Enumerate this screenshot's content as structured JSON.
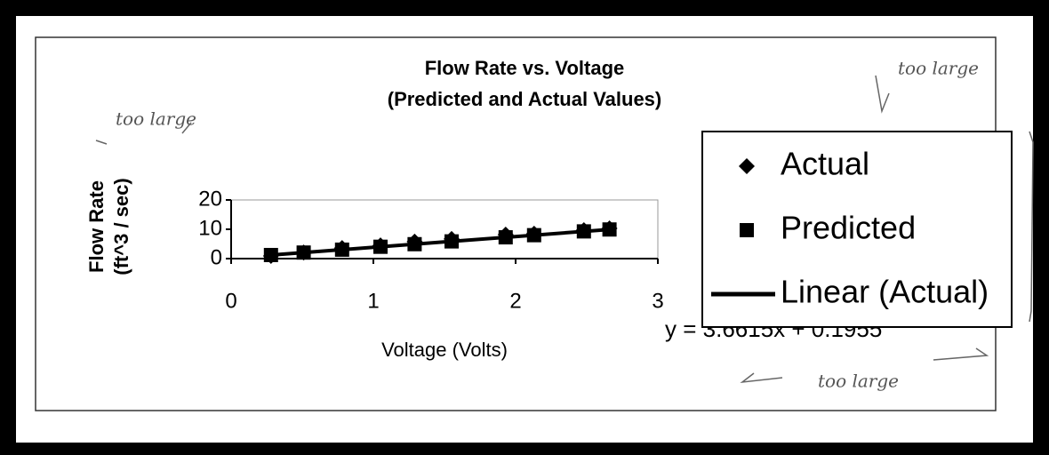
{
  "chart_data": {
    "type": "scatter",
    "title": "Flow Rate vs. Voltage",
    "subtitle": "(Predicted and Actual Values)",
    "x_label": "Voltage (Volts)",
    "y_label": [
      "Flow Rate",
      "(ft^3 / sec)"
    ],
    "x": [
      0.28,
      0.51,
      0.78,
      1.05,
      1.29,
      1.55,
      1.93,
      2.13,
      2.48,
      2.66
    ],
    "series": [
      {
        "name": "Actual",
        "color": "#000000",
        "marker": "diamond",
        "values": [
          0.9,
          2.1,
          3.6,
          4.5,
          5.8,
          6.7,
          8.2,
          8.5,
          9.7,
          10.3
        ]
      },
      {
        "name": "Predicted",
        "color": "#000000",
        "marker": "square",
        "values": [
          1.22,
          2.06,
          3.05,
          4.04,
          4.92,
          5.87,
          7.26,
          7.99,
          9.28,
          9.93
        ]
      }
    ],
    "trendline": {
      "name": "Linear (Actual)",
      "color": "#000000",
      "equation": "y = 3.6615x + 0.1955",
      "slope": 3.6615,
      "intercept": 0.1955
    },
    "xlim": [
      0,
      3
    ],
    "xticks": [
      0,
      1,
      2,
      3
    ],
    "ylim": [
      0,
      20
    ],
    "yticks": [
      0,
      10,
      20
    ],
    "legend": "right",
    "annotations": [
      "too large",
      "too large",
      "too large"
    ]
  }
}
